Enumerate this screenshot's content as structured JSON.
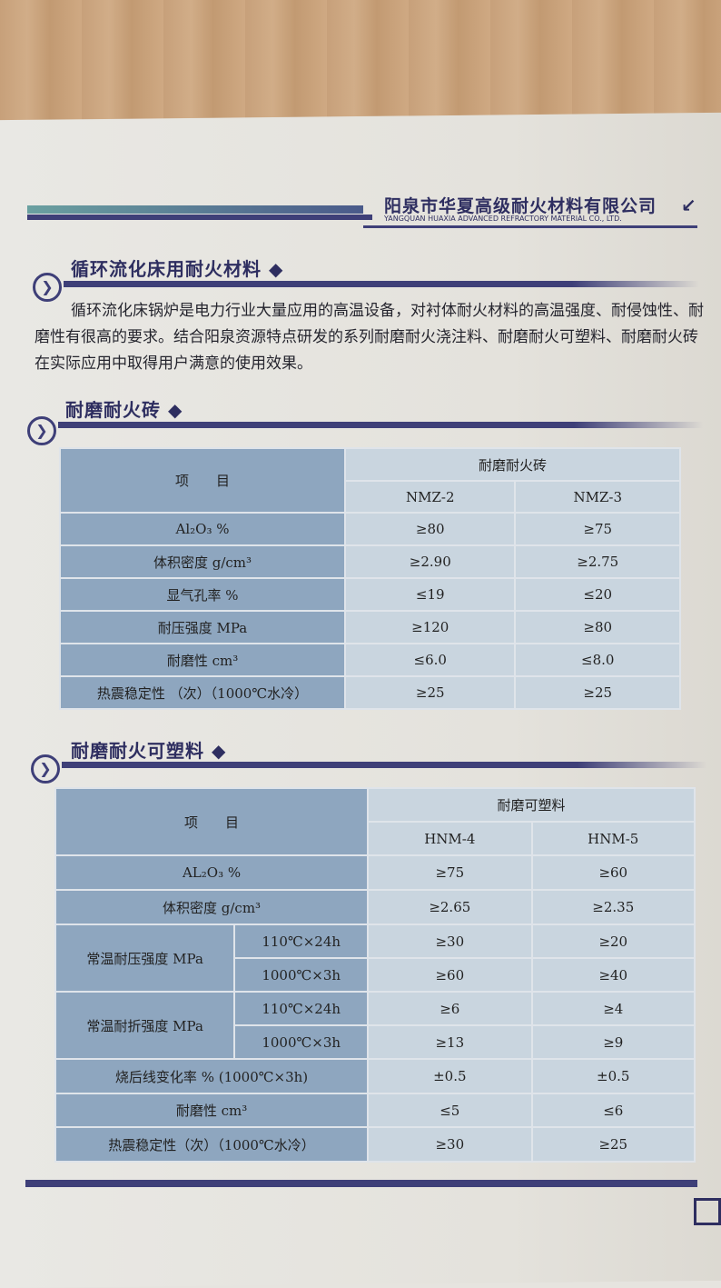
{
  "header": {
    "company_cn": "阳泉市华夏高级耐火材料有限公司",
    "company_en": "YANGQUAN HUAXIA ADVANCED REFRACTORY MATERIAL CO., LTD."
  },
  "section1": {
    "title": "循环流化床用耐火材料 ◆",
    "paragraph": "循环流化床锅炉是电力行业大量应用的高温设备，对衬体耐火材料的高温强度、耐侵蚀性、耐磨性有很高的要求。结合阳泉资源特点研发的系列耐磨耐火浇注料、耐磨耐火可塑料、耐磨耐火砖在实际应用中取得用户满意的使用效果。"
  },
  "section2": {
    "title": "耐磨耐火砖 ◆",
    "item_header": "项　　目",
    "group_header": "耐磨耐火砖",
    "columns": [
      "NMZ-2",
      "NMZ-3"
    ],
    "rows": [
      {
        "label": "Al₂O₃ %",
        "v": [
          "≥80",
          "≥75"
        ]
      },
      {
        "label": "体积密度 g/cm³",
        "v": [
          "≥2.90",
          "≥2.75"
        ]
      },
      {
        "label": "显气孔率 %",
        "v": [
          "≤19",
          "≤20"
        ]
      },
      {
        "label": "耐压强度 MPa",
        "v": [
          "≥120",
          "≥80"
        ]
      },
      {
        "label": "耐磨性 cm³",
        "v": [
          "≤6.0",
          "≤8.0"
        ]
      },
      {
        "label": "热震稳定性 （次）（1000℃水冷）",
        "v": [
          "≥25",
          "≥25"
        ]
      }
    ]
  },
  "section3": {
    "title": "耐磨耐火可塑料 ◆",
    "item_header": "项　　目",
    "group_header": "耐磨可塑料",
    "columns": [
      "HNM-4",
      "HNM-5"
    ],
    "rows": [
      {
        "label": "AL₂O₃ %",
        "v": [
          "≥75",
          "≥60"
        ]
      },
      {
        "label": "体积密度 g/cm³",
        "v": [
          "≥2.65",
          "≥2.35"
        ]
      },
      {
        "label": "常温耐压强度 MPa",
        "sub": "110℃×24h",
        "v": [
          "≥30",
          "≥20"
        ]
      },
      {
        "sub": "1000℃×3h",
        "v": [
          "≥60",
          "≥40"
        ]
      },
      {
        "label": "常温耐折强度 MPa",
        "sub": "110℃×24h",
        "v": [
          "≥6",
          "≥4"
        ]
      },
      {
        "sub": "1000℃×3h",
        "v": [
          "≥13",
          "≥9"
        ]
      },
      {
        "label": "烧后线变化率 % (1000℃×3h)",
        "v": [
          "±0.5",
          "±0.5"
        ]
      },
      {
        "label": "耐磨性 cm³",
        "v": [
          "≤5",
          "≤6"
        ]
      },
      {
        "label": "热震稳定性（次）（1000℃水冷）",
        "v": [
          "≥30",
          "≥25"
        ]
      }
    ]
  }
}
